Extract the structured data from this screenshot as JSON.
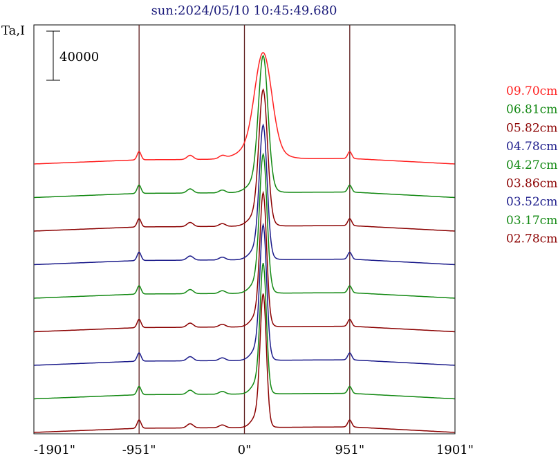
{
  "chart_data": {
    "type": "line",
    "title": "sun:2024/05/10 10:45:49.680",
    "ylabel": "Ta,I",
    "scale_bar_label": "40000",
    "x_ticks": [
      {
        "value": -1901,
        "label": "-1901\""
      },
      {
        "value": -951,
        "label": "-951\""
      },
      {
        "value": 0,
        "label": "0\""
      },
      {
        "value": 951,
        "label": "951\""
      },
      {
        "value": 1901,
        "label": "1901\""
      }
    ],
    "vlines": [
      -951,
      0,
      951
    ],
    "xlim": [
      -1901,
      1901
    ],
    "series": [
      {
        "name": "09.70cm",
        "color": "#ff2020",
        "peak_x": 170,
        "peak_y": 0.62,
        "width": 75,
        "base_offset": 0
      },
      {
        "name": "06.81cm",
        "color": "#118811",
        "peak_x": 170,
        "peak_y": 0.83,
        "width": 42,
        "base_offset": 1
      },
      {
        "name": "05.82cm",
        "color": "#8b0000",
        "peak_x": 170,
        "peak_y": 0.83,
        "width": 38,
        "base_offset": 2
      },
      {
        "name": "04.78cm",
        "color": "#1a1a8a",
        "peak_x": 170,
        "peak_y": 0.82,
        "width": 34,
        "base_offset": 3
      },
      {
        "name": "04.27cm",
        "color": "#118811",
        "peak_x": 170,
        "peak_y": 0.85,
        "width": 33,
        "base_offset": 4
      },
      {
        "name": "03.86cm",
        "color": "#8b0000",
        "peak_x": 170,
        "peak_y": 0.82,
        "width": 30,
        "base_offset": 5
      },
      {
        "name": "03.52cm",
        "color": "#1a1a8a",
        "peak_x": 170,
        "peak_y": 0.83,
        "width": 30,
        "base_offset": 6
      },
      {
        "name": "03.17cm",
        "color": "#118811",
        "peak_x": 170,
        "peak_y": 0.8,
        "width": 28,
        "base_offset": 7
      },
      {
        "name": "02.78cm",
        "color": "#8b0000",
        "peak_x": 170,
        "peak_y": 0.82,
        "width": 28,
        "base_offset": 8
      }
    ],
    "grid": false,
    "legend_position": "right"
  }
}
